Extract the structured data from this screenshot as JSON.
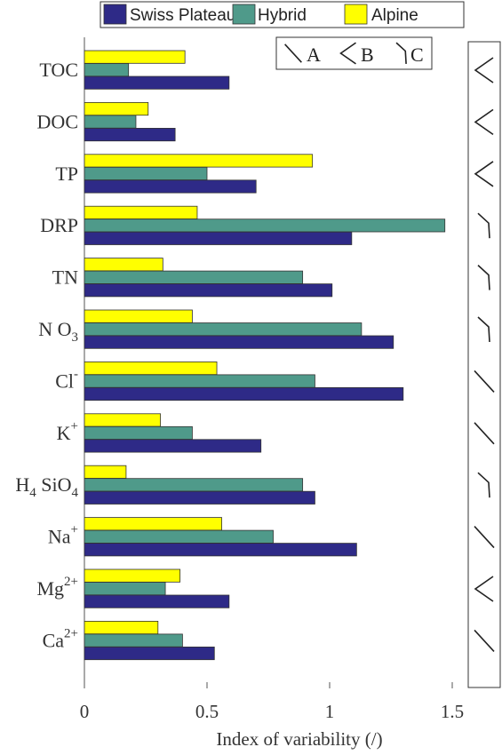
{
  "chart_data": {
    "type": "bar",
    "orientation": "horizontal",
    "categories": [
      "TOC",
      "DOC",
      "TP",
      "DRP",
      "TN",
      "NO3",
      "Cl-",
      "K+",
      "H4SiO4",
      "Na+",
      "Mg2+",
      "Ca2+"
    ],
    "category_labels": [
      {
        "base": "TOC"
      },
      {
        "base": "DOC"
      },
      {
        "base": "TP"
      },
      {
        "base": "DRP"
      },
      {
        "base": "TN"
      },
      {
        "base": "N O",
        "sub": "3"
      },
      {
        "base": "Cl",
        "sup": "-"
      },
      {
        "base": "K",
        "sup": "+"
      },
      {
        "base": "H",
        "sub": "4",
        "mid": " SiO",
        "sub2": "4"
      },
      {
        "base": "Na",
        "sup": "+"
      },
      {
        "base": "Mg",
        "sup": "2+"
      },
      {
        "base": "Ca",
        "sup": "2+"
      }
    ],
    "series": [
      {
        "name": "Swiss Plateau",
        "color": "#2e2a87",
        "values": [
          0.59,
          0.37,
          0.7,
          1.09,
          1.01,
          1.26,
          1.3,
          0.72,
          0.94,
          1.11,
          0.59,
          0.53
        ]
      },
      {
        "name": "Hybrid",
        "color": "#4f9a8a",
        "values": [
          0.18,
          0.21,
          0.5,
          1.47,
          0.89,
          1.13,
          0.94,
          0.44,
          0.89,
          0.77,
          0.33,
          0.4
        ]
      },
      {
        "name": "Alpine",
        "color": "#ffff00",
        "values": [
          0.41,
          0.26,
          0.93,
          0.46,
          0.32,
          0.44,
          0.54,
          0.31,
          0.17,
          0.56,
          0.39,
          0.3
        ]
      }
    ],
    "xlabel": "Index of variability (/)",
    "xlim": [
      0,
      1.6
    ],
    "xticks": [
      "0",
      "0.5",
      "1",
      "1.5"
    ],
    "xtick_values": [
      0,
      0.5,
      1,
      1.5
    ],
    "legend_placement": "top",
    "grid": false,
    "pattern_legend": [
      {
        "shape": "A",
        "label": "A"
      },
      {
        "shape": "B",
        "label": "B"
      },
      {
        "shape": "C",
        "label": "C"
      }
    ],
    "patterns": [
      "B",
      "B",
      "B",
      "C",
      "C",
      "C",
      "A",
      "A",
      "C",
      "A",
      "B",
      "A"
    ]
  }
}
